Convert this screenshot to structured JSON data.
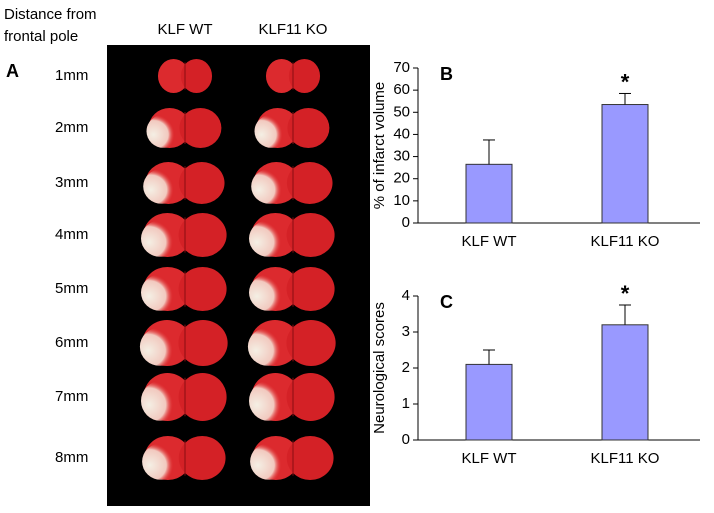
{
  "panel_a": {
    "label": "A",
    "heading": [
      "Distance from",
      "frontal pole"
    ],
    "columns": [
      "KLF WT",
      "KLF11 KO"
    ],
    "rows": [
      "1mm",
      "2mm",
      "3mm",
      "4mm",
      "5mm",
      "6mm",
      "7mm",
      "8mm"
    ]
  },
  "chart_data": [
    {
      "type": "bar",
      "label": "B",
      "y_label": "% of infarct volume",
      "categories": [
        "KLF WT",
        "KLF11 KO"
      ],
      "values": [
        26.5,
        53.5
      ],
      "errors": [
        11,
        5
      ],
      "annotation": "*",
      "color": "#9999ff",
      "ylim": [
        0,
        70
      ],
      "yticks": [
        0,
        10,
        20,
        30,
        40,
        50,
        60,
        70
      ]
    },
    {
      "type": "bar",
      "label": "C",
      "y_label": "Neurological scores",
      "categories": [
        "KLF WT",
        "KLF11 KO"
      ],
      "values": [
        2.1,
        3.2
      ],
      "errors": [
        0.4,
        0.55
      ],
      "annotation": "*",
      "color": "#9999ff",
      "ylim": [
        0,
        4
      ],
      "yticks": [
        0,
        1,
        2,
        3,
        4
      ]
    }
  ]
}
